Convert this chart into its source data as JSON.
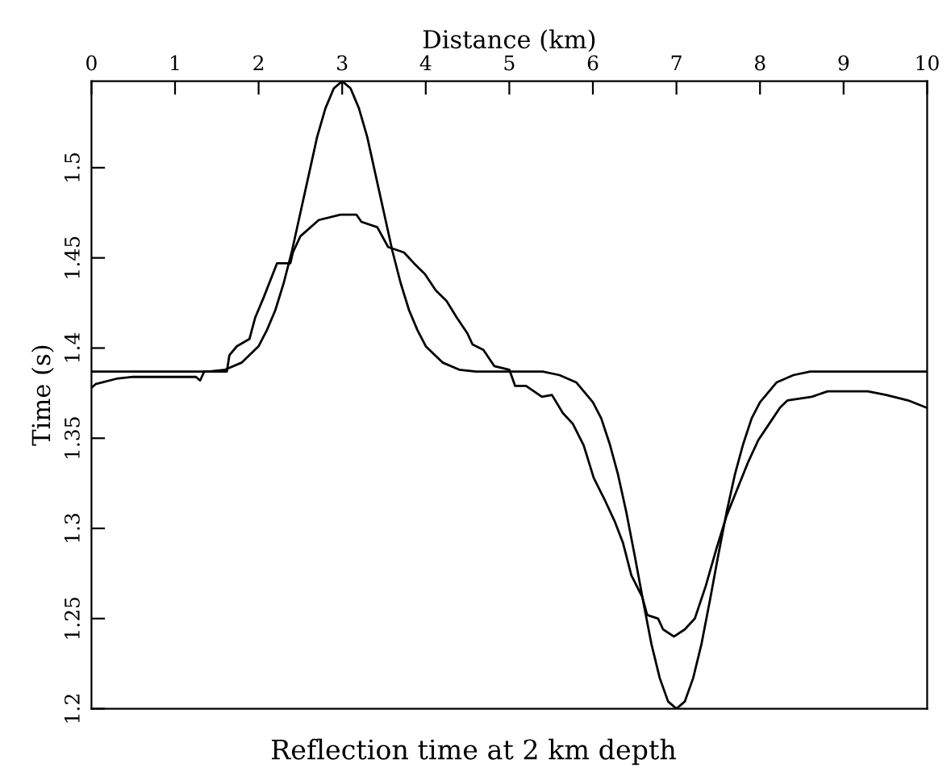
{
  "chart_data": {
    "type": "line",
    "title": "Reflection time at 2 km depth",
    "xlabel": "Distance (km)",
    "ylabel": "Time (s)",
    "xlim": [
      0,
      10
    ],
    "ylim": [
      1.2,
      1.548
    ],
    "xticks": [
      0,
      1,
      2,
      3,
      4,
      5,
      6,
      7,
      8,
      9,
      10
    ],
    "yticks": [
      1.2,
      1.25,
      1.3,
      1.35,
      1.4,
      1.45,
      1.5
    ],
    "grid": false,
    "marker": "none",
    "line_style": "solid",
    "series": [
      {
        "color": "#000000",
        "x": [
          0,
          1.4,
          1.6,
          1.8,
          2.0,
          2.1,
          2.2,
          2.3,
          2.4,
          2.5,
          2.6,
          2.7,
          2.8,
          2.9,
          3.0,
          3.1,
          3.2,
          3.3,
          3.4,
          3.5,
          3.6,
          3.7,
          3.8,
          3.9,
          4.0,
          4.2,
          4.4,
          4.6,
          5.4,
          5.6,
          5.8,
          6.0,
          6.1,
          6.2,
          6.3,
          6.4,
          6.5,
          6.6,
          6.7,
          6.8,
          6.9,
          7.0,
          7.1,
          7.2,
          7.3,
          7.4,
          7.5,
          7.6,
          7.7,
          7.8,
          7.9,
          8.0,
          8.2,
          8.4,
          8.6,
          10
        ],
        "values": [
          1.387,
          1.387,
          1.388,
          1.392,
          1.401,
          1.41,
          1.421,
          1.436,
          1.454,
          1.475,
          1.496,
          1.517,
          1.533,
          1.544,
          1.548,
          1.544,
          1.533,
          1.517,
          1.496,
          1.475,
          1.454,
          1.436,
          1.421,
          1.41,
          1.401,
          1.392,
          1.388,
          1.387,
          1.387,
          1.385,
          1.381,
          1.37,
          1.361,
          1.347,
          1.33,
          1.309,
          1.285,
          1.26,
          1.236,
          1.217,
          1.204,
          1.2,
          1.204,
          1.217,
          1.236,
          1.26,
          1.285,
          1.309,
          1.33,
          1.347,
          1.361,
          1.37,
          1.381,
          1.385,
          1.387,
          1.387
        ]
      },
      {
        "color": "#000000",
        "x": [
          0,
          0.05,
          0.3,
          0.5,
          1.0,
          1.25,
          1.3,
          1.35,
          1.62,
          1.65,
          1.74,
          1.89,
          1.96,
          2.06,
          2.22,
          2.38,
          2.41,
          2.5,
          2.72,
          2.98,
          3.17,
          3.23,
          3.42,
          3.55,
          3.74,
          3.86,
          3.99,
          4.12,
          4.25,
          4.37,
          4.5,
          4.56,
          4.69,
          4.82,
          5.0,
          5.07,
          5.2,
          5.39,
          5.51,
          5.64,
          5.76,
          5.89,
          6.01,
          6.14,
          6.26,
          6.36,
          6.46,
          6.59,
          6.65,
          6.78,
          6.84,
          6.97,
          7.1,
          7.22,
          7.35,
          7.48,
          7.6,
          7.73,
          7.86,
          7.98,
          8.11,
          8.24,
          8.33,
          8.62,
          8.81,
          9.13,
          9.29,
          9.51,
          9.77,
          9.99
        ],
        "values": [
          1.378,
          1.38,
          1.383,
          1.384,
          1.384,
          1.384,
          1.382,
          1.387,
          1.387,
          1.396,
          1.401,
          1.405,
          1.417,
          1.428,
          1.447,
          1.447,
          1.453,
          1.462,
          1.471,
          1.474,
          1.474,
          1.47,
          1.467,
          1.456,
          1.453,
          1.447,
          1.441,
          1.432,
          1.426,
          1.417,
          1.408,
          1.402,
          1.399,
          1.39,
          1.388,
          1.379,
          1.379,
          1.373,
          1.374,
          1.364,
          1.358,
          1.346,
          1.328,
          1.316,
          1.304,
          1.292,
          1.274,
          1.262,
          1.252,
          1.25,
          1.244,
          1.24,
          1.244,
          1.25,
          1.268,
          1.289,
          1.307,
          1.322,
          1.337,
          1.349,
          1.358,
          1.367,
          1.371,
          1.373,
          1.376,
          1.376,
          1.376,
          1.374,
          1.371,
          1.367
        ]
      }
    ]
  }
}
